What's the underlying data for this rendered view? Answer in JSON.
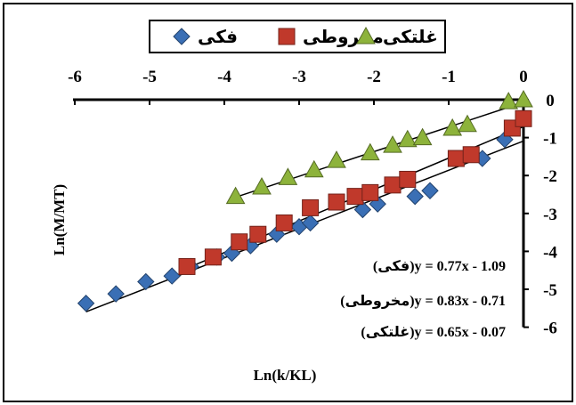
{
  "chart_data": {
    "type": "scatter",
    "title": "",
    "xlabel": "Ln(k/KL)",
    "ylabel": "Ln(M/MT)",
    "xlim": [
      -6,
      0
    ],
    "ylim": [
      -6,
      0
    ],
    "x_ticks": [
      "-6",
      "-5",
      "-4",
      "-3",
      "-2",
      "-1",
      "0"
    ],
    "y_ticks": [
      "0",
      "-1",
      "-2",
      "-3",
      "-4",
      "-5",
      "-6"
    ],
    "x_axis_position": "top",
    "y_axis_position": "right",
    "grid": false,
    "legend_position": "top",
    "series": [
      {
        "name": "فکی",
        "marker": "diamond",
        "color": "#3a6fb5",
        "trendline": {
          "slope": 0.77,
          "intercept": -1.09
        },
        "equation_label": "(فکی)y = 0.77x - 1.09",
        "points": [
          [
            -5.85,
            -5.37
          ],
          [
            -5.45,
            -5.12
          ],
          [
            -5.05,
            -4.8
          ],
          [
            -4.7,
            -4.65
          ],
          [
            -4.45,
            -4.4
          ],
          [
            -4.1,
            -4.15
          ],
          [
            -3.9,
            -4.05
          ],
          [
            -3.65,
            -3.85
          ],
          [
            -3.3,
            -3.55
          ],
          [
            -3.0,
            -3.35
          ],
          [
            -2.85,
            -3.25
          ],
          [
            -2.15,
            -2.9
          ],
          [
            -1.95,
            -2.75
          ],
          [
            -1.45,
            -2.55
          ],
          [
            -1.25,
            -2.4
          ],
          [
            -0.55,
            -1.55
          ],
          [
            -0.25,
            -1.05
          ]
        ]
      },
      {
        "name": "مخروطی",
        "marker": "square",
        "color": "#c0392b",
        "trendline": {
          "slope": 0.83,
          "intercept": -0.71
        },
        "equation_label": "(مخروطی)y = 0.83x - 0.71",
        "points": [
          [
            -4.5,
            -4.4
          ],
          [
            -4.15,
            -4.15
          ],
          [
            -3.8,
            -3.75
          ],
          [
            -3.55,
            -3.55
          ],
          [
            -3.2,
            -3.25
          ],
          [
            -2.85,
            -2.85
          ],
          [
            -2.5,
            -2.7
          ],
          [
            -2.25,
            -2.55
          ],
          [
            -2.05,
            -2.45
          ],
          [
            -1.75,
            -2.25
          ],
          [
            -1.55,
            -2.1
          ],
          [
            -0.9,
            -1.55
          ],
          [
            -0.7,
            -1.45
          ],
          [
            -0.15,
            -0.75
          ],
          [
            0.0,
            -0.5
          ]
        ]
      },
      {
        "name": "غلتکی",
        "marker": "triangle",
        "color": "#8db33b",
        "trendline": {
          "slope": 0.65,
          "intercept": -0.07
        },
        "equation_label": "(غلتکی)y = 0.65x - 0.07",
        "points": [
          [
            -3.85,
            -2.55
          ],
          [
            -3.5,
            -2.3
          ],
          [
            -3.15,
            -2.05
          ],
          [
            -2.8,
            -1.85
          ],
          [
            -2.5,
            -1.6
          ],
          [
            -2.05,
            -1.4
          ],
          [
            -1.75,
            -1.2
          ],
          [
            -1.55,
            -1.05
          ],
          [
            -1.35,
            -1.0
          ],
          [
            -0.95,
            -0.75
          ],
          [
            -0.75,
            -0.65
          ],
          [
            -0.2,
            -0.05
          ],
          [
            0.0,
            0.0
          ]
        ]
      }
    ]
  }
}
